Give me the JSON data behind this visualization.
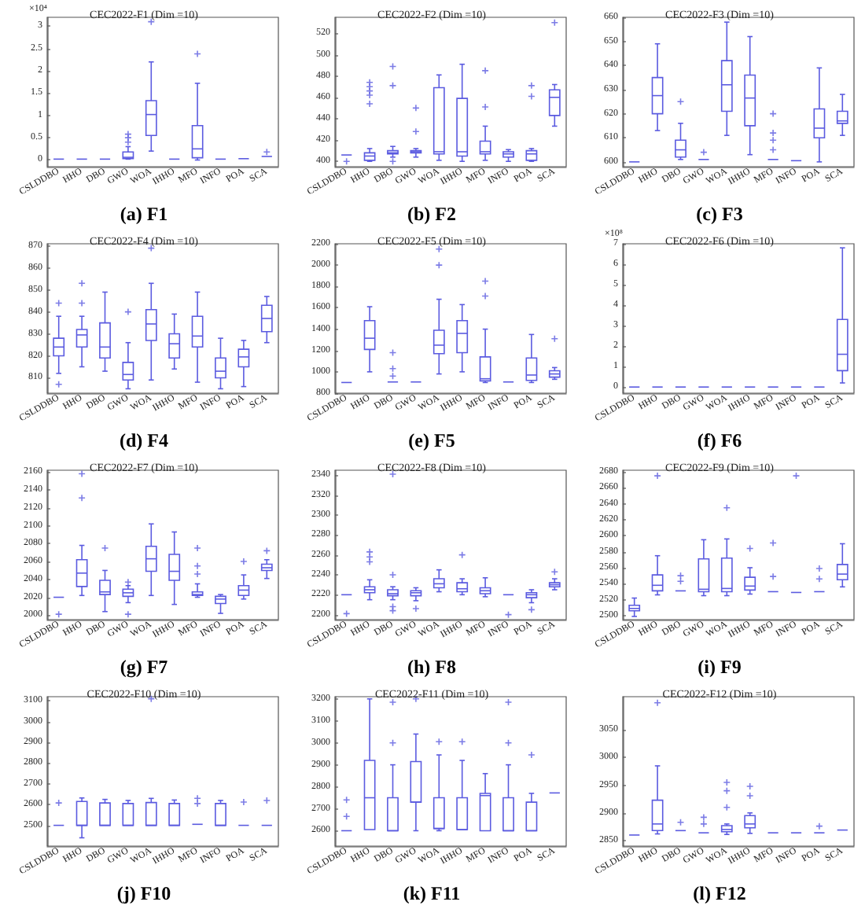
{
  "chart_data": [
    {
      "type": "box",
      "title": "CEC2022-F1 (Dim =10)",
      "ylabel": "×10⁴",
      "annotations": [
        "(a) F1"
      ],
      "color": "#5b5be0",
      "marker": "cross",
      "grid": false,
      "ylim": [
        -0.15,
        3.2
      ],
      "yticks": [
        0,
        0.5,
        1,
        1.5,
        2,
        2.5,
        3
      ],
      "categories": [
        "CSLDDBO",
        "HHO",
        "DBO",
        "GWO",
        "WOA",
        "IHHO",
        "MFO",
        "INFO",
        "POA",
        "SCA"
      ],
      "boxes": [
        {
          "low": 0.02,
          "q1": 0.02,
          "median": 0.02,
          "q3": 0.02,
          "high": 0.02
        },
        {
          "low": 0.02,
          "q1": 0.02,
          "median": 0.02,
          "q3": 0.02,
          "high": 0.02
        },
        {
          "low": 0.02,
          "q1": 0.02,
          "median": 0.02,
          "q3": 0.02,
          "high": 0.02
        },
        {
          "low": 0.02,
          "q1": 0.03,
          "median": 0.06,
          "q3": 0.18,
          "high": 0.3,
          "outliers": [
            0.4,
            0.5,
            0.58
          ]
        },
        {
          "low": 0.2,
          "q1": 0.55,
          "median": 1.02,
          "q3": 1.33,
          "high": 2.2,
          "outliers": [
            3.1
          ]
        },
        {
          "low": 0.02,
          "q1": 0.02,
          "median": 0.02,
          "q3": 0.02,
          "high": 0.02
        },
        {
          "low": 0,
          "q1": 0.05,
          "median": 0.25,
          "q3": 0.77,
          "high": 1.72,
          "outliers": [
            2.38
          ]
        },
        {
          "low": 0.02,
          "q1": 0.02,
          "median": 0.02,
          "q3": 0.02,
          "high": 0.02
        },
        {
          "low": 0.03,
          "q1": 0.03,
          "median": 0.03,
          "q3": 0.03,
          "high": 0.03
        },
        {
          "low": 0.08,
          "q1": 0.08,
          "median": 0.08,
          "q3": 0.08,
          "high": 0.08,
          "outliers": [
            0.18
          ]
        }
      ]
    },
    {
      "type": "box",
      "title": "CEC2022-F2 (Dim =10)",
      "annotations": [
        "(b) F2"
      ],
      "color": "#5b5be0",
      "marker": "cross",
      "grid": false,
      "ylim": [
        395,
        535
      ],
      "yticks": [
        400,
        420,
        440,
        460,
        480,
        500,
        520
      ],
      "categories": [
        "CSLDDBO",
        "HHO",
        "DBO",
        "GWO",
        "WOA",
        "IHHO",
        "MFO",
        "INFO",
        "POA",
        "SCA"
      ],
      "boxes": [
        {
          "low": 406,
          "q1": 406,
          "median": 406,
          "q3": 406,
          "high": 406,
          "outliers": [
            400
          ]
        },
        {
          "low": 400,
          "q1": 401,
          "median": 405,
          "q3": 408,
          "high": 412,
          "outliers": [
            454,
            462,
            466,
            470,
            474
          ]
        },
        {
          "low": 404,
          "q1": 407,
          "median": 408,
          "q3": 410,
          "high": 414,
          "outliers": [
            400,
            471,
            489
          ]
        },
        {
          "low": 404,
          "q1": 408,
          "median": 409,
          "q3": 410,
          "high": 412,
          "outliers": [
            428,
            450
          ]
        },
        {
          "low": 401,
          "q1": 407,
          "median": 409,
          "q3": 469,
          "high": 481
        },
        {
          "low": 400,
          "q1": 405,
          "median": 409,
          "q3": 459,
          "high": 491
        },
        {
          "low": 401,
          "q1": 407,
          "median": 409,
          "q3": 419,
          "high": 433,
          "outliers": [
            451,
            485
          ]
        },
        {
          "low": 400,
          "q1": 404,
          "median": 407,
          "q3": 409,
          "high": 411
        },
        {
          "low": 400,
          "q1": 401,
          "median": 407,
          "q3": 410,
          "high": 412,
          "outliers": [
            461,
            471
          ]
        },
        {
          "low": 433,
          "q1": 443,
          "median": 460,
          "q3": 467,
          "high": 472,
          "outliers": [
            530
          ]
        }
      ]
    },
    {
      "type": "box",
      "title": "CEC2022-F3 (Dim =10)",
      "annotations": [
        "(c) F3"
      ],
      "color": "#5b5be0",
      "marker": "cross",
      "grid": false,
      "ylim": [
        598,
        660
      ],
      "yticks": [
        600,
        610,
        620,
        630,
        640,
        650,
        660
      ],
      "categories": [
        "CSLDDBO",
        "HHO",
        "DBO",
        "GWO",
        "WOA",
        "IHHO",
        "MFO",
        "INFO",
        "POA",
        "SCA"
      ],
      "boxes": [
        {
          "low": 600,
          "q1": 600,
          "median": 600,
          "q3": 600,
          "high": 600
        },
        {
          "low": 613,
          "q1": 620,
          "median": 627.5,
          "q3": 635,
          "high": 649
        },
        {
          "low": 601,
          "q1": 602,
          "median": 605,
          "q3": 609,
          "high": 616,
          "outliers": [
            625
          ]
        },
        {
          "low": 601,
          "q1": 601,
          "median": 601,
          "q3": 601,
          "high": 601,
          "outliers": [
            604
          ]
        },
        {
          "low": 611,
          "q1": 621,
          "median": 632,
          "q3": 642,
          "high": 658
        },
        {
          "low": 603,
          "q1": 615,
          "median": 626.5,
          "q3": 636,
          "high": 652
        },
        {
          "low": 601,
          "q1": 601,
          "median": 601,
          "q3": 601,
          "high": 601,
          "outliers": [
            605,
            609,
            612,
            620
          ]
        },
        {
          "low": 600.5,
          "q1": 600.5,
          "median": 600.5,
          "q3": 600.5,
          "high": 600.5
        },
        {
          "low": 600,
          "q1": 610,
          "median": 614,
          "q3": 622,
          "high": 639
        },
        {
          "low": 611,
          "q1": 616,
          "median": 617,
          "q3": 621,
          "high": 628
        }
      ]
    },
    {
      "type": "box",
      "title": "CEC2022-F4 (Dim =10)",
      "annotations": [
        "(d) F4"
      ],
      "color": "#5b5be0",
      "marker": "cross",
      "grid": false,
      "ylim": [
        803,
        871
      ],
      "yticks": [
        810,
        820,
        830,
        840,
        850,
        860,
        870
      ],
      "categories": [
        "CSLDDBO",
        "HHO",
        "DBO",
        "GWO",
        "WOA",
        "IHHO",
        "MFO",
        "INFO",
        "POA",
        "SCA"
      ],
      "boxes": [
        {
          "low": 812,
          "q1": 820,
          "median": 824,
          "q3": 828,
          "high": 838,
          "outliers": [
            807,
            844
          ]
        },
        {
          "low": 815,
          "q1": 824,
          "median": 829.5,
          "q3": 832,
          "high": 838,
          "outliers": [
            844,
            853
          ]
        },
        {
          "low": 813,
          "q1": 819,
          "median": 824,
          "q3": 835,
          "high": 849
        },
        {
          "low": 805,
          "q1": 809,
          "median": 811.5,
          "q3": 817,
          "high": 826,
          "outliers": [
            840
          ]
        },
        {
          "low": 809,
          "q1": 827,
          "median": 834.5,
          "q3": 841,
          "high": 853,
          "outliers": [
            869
          ]
        },
        {
          "low": 814,
          "q1": 819,
          "median": 825.5,
          "q3": 830,
          "high": 839
        },
        {
          "low": 808,
          "q1": 824,
          "median": 829,
          "q3": 838,
          "high": 849
        },
        {
          "low": 805,
          "q1": 810,
          "median": 813,
          "q3": 819,
          "high": 828
        },
        {
          "low": 806,
          "q1": 815,
          "median": 819.5,
          "q3": 823,
          "high": 827
        },
        {
          "low": 826,
          "q1": 831,
          "median": 837,
          "q3": 843,
          "high": 847
        }
      ]
    },
    {
      "type": "box",
      "title": "CEC2022-F5 (Dim =10)",
      "annotations": [
        "(e) F5"
      ],
      "color": "#5b5be0",
      "marker": "cross",
      "grid": false,
      "ylim": [
        800,
        2200
      ],
      "yticks": [
        800,
        1000,
        1200,
        1400,
        1600,
        1800,
        2000,
        2200
      ],
      "categories": [
        "CSLDDBO",
        "HHO",
        "DBO",
        "GWO",
        "WOA",
        "IHHO",
        "MFO",
        "INFO",
        "POA",
        "SCA"
      ],
      "boxes": [
        {
          "low": 900,
          "q1": 900,
          "median": 900,
          "q3": 900,
          "high": 900
        },
        {
          "low": 1000,
          "q1": 1210,
          "median": 1315,
          "q3": 1480,
          "high": 1610
        },
        {
          "low": 905,
          "q1": 905,
          "median": 905,
          "q3": 905,
          "high": 905,
          "outliers": [
            960,
            1030,
            1180
          ]
        },
        {
          "low": 905,
          "q1": 905,
          "median": 905,
          "q3": 905,
          "high": 905
        },
        {
          "low": 980,
          "q1": 1170,
          "median": 1250,
          "q3": 1390,
          "high": 1680,
          "outliers": [
            2000,
            2150
          ]
        },
        {
          "low": 1000,
          "q1": 1180,
          "median": 1360,
          "q3": 1480,
          "high": 1630
        },
        {
          "low": 900,
          "q1": 915,
          "median": 935,
          "q3": 1140,
          "high": 1400,
          "outliers": [
            1710,
            1850
          ]
        },
        {
          "low": 905,
          "q1": 905,
          "median": 905,
          "q3": 905,
          "high": 905
        },
        {
          "low": 900,
          "q1": 920,
          "median": 970,
          "q3": 1130,
          "high": 1350
        },
        {
          "low": 930,
          "q1": 950,
          "median": 980,
          "q3": 1010,
          "high": 1040,
          "outliers": [
            1310
          ]
        }
      ]
    },
    {
      "type": "box",
      "title": "CEC2022-F6 (Dim =10)",
      "ylabel": "×10⁸",
      "annotations": [
        "(f) F6"
      ],
      "color": "#5b5be0",
      "marker": "cross",
      "grid": false,
      "ylim": [
        -0.3,
        7
      ],
      "yticks": [
        0,
        1,
        2,
        3,
        4,
        5,
        6,
        7
      ],
      "categories": [
        "CSLDDBO",
        "HHO",
        "DBO",
        "GWO",
        "WOA",
        "IHHO",
        "MFO",
        "INFO",
        "POA",
        "SCA"
      ],
      "boxes": [
        {
          "low": 0,
          "q1": 0,
          "median": 0,
          "q3": 0,
          "high": 0
        },
        {
          "low": 0,
          "q1": 0,
          "median": 0,
          "q3": 0,
          "high": 0
        },
        {
          "low": 0,
          "q1": 0,
          "median": 0,
          "q3": 0,
          "high": 0
        },
        {
          "low": 0,
          "q1": 0,
          "median": 0,
          "q3": 0,
          "high": 0
        },
        {
          "low": 0,
          "q1": 0,
          "median": 0,
          "q3": 0,
          "high": 0
        },
        {
          "low": 0,
          "q1": 0,
          "median": 0,
          "q3": 0,
          "high": 0
        },
        {
          "low": 0,
          "q1": 0,
          "median": 0,
          "q3": 0,
          "high": 0
        },
        {
          "low": 0,
          "q1": 0,
          "median": 0,
          "q3": 0,
          "high": 0
        },
        {
          "low": 0,
          "q1": 0,
          "median": 0,
          "q3": 0,
          "high": 0
        },
        {
          "low": 0.2,
          "q1": 0.8,
          "median": 1.6,
          "q3": 3.3,
          "high": 6.8
        }
      ]
    },
    {
      "type": "box",
      "title": "CEC2022-F7 (Dim =10)",
      "annotations": [
        "(g) F7"
      ],
      "color": "#5b5be0",
      "marker": "cross",
      "grid": false,
      "ylim": [
        1995,
        2162
      ],
      "yticks": [
        2000,
        2020,
        2040,
        2060,
        2080,
        2100,
        2120,
        2140,
        2160
      ],
      "categories": [
        "CSLDDBO",
        "HHO",
        "DBO",
        "GWO",
        "WOA",
        "IHHO",
        "MFO",
        "INFO",
        "POA",
        "SCA"
      ],
      "boxes": [
        {
          "low": 2020,
          "q1": 2020,
          "median": 2020,
          "q3": 2020,
          "high": 2020,
          "outliers": [
            2001
          ]
        },
        {
          "low": 2022,
          "q1": 2032,
          "median": 2047,
          "q3": 2062,
          "high": 2078,
          "outliers": [
            2131,
            2158
          ]
        },
        {
          "low": 2004,
          "q1": 2023,
          "median": 2026,
          "q3": 2039,
          "high": 2050,
          "outliers": [
            2075
          ]
        },
        {
          "low": 2014,
          "q1": 2021,
          "median": 2025,
          "q3": 2029,
          "high": 2033,
          "outliers": [
            2001,
            2037
          ]
        },
        {
          "low": 2022,
          "q1": 2049,
          "median": 2063,
          "q3": 2077,
          "high": 2102
        },
        {
          "low": 2012,
          "q1": 2039,
          "median": 2049,
          "q3": 2068,
          "high": 2093
        },
        {
          "low": 2020,
          "q1": 2022,
          "median": 2023,
          "q3": 2026,
          "high": 2035,
          "outliers": [
            2046,
            2055,
            2075
          ]
        },
        {
          "low": 2002,
          "q1": 2013,
          "median": 2018,
          "q3": 2021,
          "high": 2023
        },
        {
          "low": 2018,
          "q1": 2022,
          "median": 2028,
          "q3": 2033,
          "high": 2045,
          "outliers": [
            2060
          ]
        },
        {
          "low": 2041,
          "q1": 2050,
          "median": 2053,
          "q3": 2057,
          "high": 2062,
          "outliers": [
            2072
          ]
        }
      ]
    },
    {
      "type": "box",
      "title": "CEC2022-F8 (Dim =10)",
      "annotations": [
        "(h) F8"
      ],
      "color": "#5b5be0",
      "marker": "cross",
      "grid": false,
      "ylim": [
        2195,
        2345
      ],
      "yticks": [
        2200,
        2220,
        2240,
        2260,
        2280,
        2300,
        2320,
        2340
      ],
      "categories": [
        "CSLDDBO",
        "HHO",
        "DBO",
        "GWO",
        "WOA",
        "IHHO",
        "MFO",
        "INFO",
        "POA",
        "SCA"
      ],
      "boxes": [
        {
          "low": 2220,
          "q1": 2220,
          "median": 2220,
          "q3": 2220,
          "high": 2220,
          "outliers": [
            2201
          ]
        },
        {
          "low": 2215,
          "q1": 2222,
          "median": 2225,
          "q3": 2228,
          "high": 2235,
          "outliers": [
            2253,
            2258,
            2263
          ]
        },
        {
          "low": 2215,
          "q1": 2219,
          "median": 2221,
          "q3": 2225,
          "high": 2228,
          "outliers": [
            2204,
            2208,
            2240,
            2341
          ]
        },
        {
          "low": 2214,
          "q1": 2219,
          "median": 2222,
          "q3": 2224,
          "high": 2227,
          "outliers": [
            2206
          ]
        },
        {
          "low": 2223,
          "q1": 2227,
          "median": 2231,
          "q3": 2236,
          "high": 2245
        },
        {
          "low": 2220,
          "q1": 2223,
          "median": 2226,
          "q3": 2232,
          "high": 2236,
          "outliers": [
            2260
          ]
        },
        {
          "low": 2218,
          "q1": 2221,
          "median": 2224,
          "q3": 2227,
          "high": 2237
        },
        {
          "low": 2220,
          "q1": 2220,
          "median": 2220,
          "q3": 2220,
          "high": 2220,
          "outliers": [
            2200
          ]
        },
        {
          "low": 2212,
          "q1": 2217,
          "median": 2220,
          "q3": 2222,
          "high": 2225,
          "outliers": [
            2205
          ]
        },
        {
          "low": 2225,
          "q1": 2228,
          "median": 2230,
          "q3": 2232,
          "high": 2236,
          "outliers": [
            2243
          ]
        }
      ]
    },
    {
      "type": "box",
      "title": "CEC2022-F9 (Dim =10)",
      "annotations": [
        "(i) F9"
      ],
      "color": "#5b5be0",
      "marker": "cross",
      "grid": false,
      "ylim": [
        2495,
        2682
      ],
      "yticks": [
        2500,
        2520,
        2540,
        2560,
        2580,
        2600,
        2620,
        2640,
        2660,
        2680
      ],
      "categories": [
        "CSLDDBO",
        "HHO",
        "DBO",
        "GWO",
        "WOA",
        "IHHO",
        "MFO",
        "INFO",
        "POA",
        "SCA"
      ],
      "boxes": [
        {
          "low": 2499,
          "q1": 2506,
          "median": 2509,
          "q3": 2513,
          "high": 2522
        },
        {
          "low": 2526,
          "q1": 2531,
          "median": 2538,
          "q3": 2551,
          "high": 2575,
          "outliers": [
            2675
          ]
        },
        {
          "low": 2531,
          "q1": 2531,
          "median": 2531,
          "q3": 2531,
          "high": 2531,
          "outliers": [
            2543,
            2550
          ]
        },
        {
          "low": 2525,
          "q1": 2530,
          "median": 2533,
          "q3": 2571,
          "high": 2595
        },
        {
          "low": 2525,
          "q1": 2530,
          "median": 2534,
          "q3": 2572,
          "high": 2596,
          "outliers": [
            2635
          ]
        },
        {
          "low": 2527,
          "q1": 2532,
          "median": 2537,
          "q3": 2548,
          "high": 2560,
          "outliers": [
            2584
          ]
        },
        {
          "low": 2530,
          "q1": 2530,
          "median": 2530,
          "q3": 2530,
          "high": 2530,
          "outliers": [
            2549,
            2591
          ]
        },
        {
          "low": 2529,
          "q1": 2529,
          "median": 2529,
          "q3": 2529,
          "high": 2529,
          "outliers": [
            2675
          ]
        },
        {
          "low": 2530,
          "q1": 2530,
          "median": 2530,
          "q3": 2530,
          "high": 2530,
          "outliers": [
            2546,
            2559
          ]
        },
        {
          "low": 2536,
          "q1": 2545,
          "median": 2552,
          "q3": 2564,
          "high": 2590
        }
      ]
    },
    {
      "type": "box",
      "title": "CEC2022-F10 (Dim =10)",
      "annotations": [
        "(j) F10"
      ],
      "color": "#5b5be0",
      "marker": "cross",
      "grid": false,
      "ylim": [
        2400,
        3120
      ],
      "yticks": [
        2500,
        2600,
        2700,
        2800,
        2900,
        3000,
        3100
      ],
      "categories": [
        "CSLDDBO",
        "HHO",
        "DBO",
        "GWO",
        "WOA",
        "IHHO",
        "MFO",
        "INFO",
        "POA",
        "SCA"
      ],
      "boxes": [
        {
          "low": 2500,
          "q1": 2500,
          "median": 2500,
          "q3": 2500,
          "high": 2500,
          "outliers": [
            2608
          ]
        },
        {
          "low": 2440,
          "q1": 2500,
          "median": 2500,
          "q3": 2615,
          "high": 2632
        },
        {
          "low": 2500,
          "q1": 2500,
          "median": 2500,
          "q3": 2608,
          "high": 2625
        },
        {
          "low": 2500,
          "q1": 2500,
          "median": 2500,
          "q3": 2605,
          "high": 2620
        },
        {
          "low": 2500,
          "q1": 2500,
          "median": 2500,
          "q3": 2610,
          "high": 2630,
          "outliers": [
            3110
          ]
        },
        {
          "low": 2500,
          "q1": 2500,
          "median": 2500,
          "q3": 2605,
          "high": 2622
        },
        {
          "low": 2505,
          "q1": 2505,
          "median": 2505,
          "q3": 2505,
          "high": 2505,
          "outliers": [
            2605,
            2630
          ]
        },
        {
          "low": 2500,
          "q1": 2500,
          "median": 2500,
          "q3": 2605,
          "high": 2620
        },
        {
          "low": 2500,
          "q1": 2500,
          "median": 2500,
          "q3": 2500,
          "high": 2500,
          "outliers": [
            2612
          ]
        },
        {
          "low": 2500,
          "q1": 2500,
          "median": 2500,
          "q3": 2500,
          "high": 2500,
          "outliers": [
            2620
          ]
        }
      ]
    },
    {
      "type": "box",
      "title": "CEC2022-F11 (Dim =10)",
      "annotations": [
        "(k) F11"
      ],
      "color": "#5b5be0",
      "marker": "cross",
      "grid": false,
      "ylim": [
        2530,
        3210
      ],
      "yticks": [
        2600,
        2700,
        2800,
        2900,
        3000,
        3100,
        3200
      ],
      "categories": [
        "CSLDDBO",
        "HHO",
        "DBO",
        "GWO",
        "WOA",
        "IHHO",
        "MFO",
        "INFO",
        "POA",
        "SCA"
      ],
      "boxes": [
        {
          "low": 2600,
          "q1": 2600,
          "median": 2600,
          "q3": 2600,
          "high": 2600,
          "outliers": [
            2665,
            2740
          ]
        },
        {
          "low": 2605,
          "q1": 2605,
          "median": 2750,
          "q3": 2920,
          "high": 3200
        },
        {
          "low": 2600,
          "q1": 2600,
          "median": 2600,
          "q3": 2750,
          "high": 2900,
          "outliers": [
            3000,
            3185
          ]
        },
        {
          "low": 2600,
          "q1": 2730,
          "median": 2730,
          "q3": 2915,
          "high": 3040,
          "outliers": [
            3200
          ]
        },
        {
          "low": 2600,
          "q1": 2610,
          "median": 2610,
          "q3": 2750,
          "high": 2945,
          "outliers": [
            3005
          ]
        },
        {
          "low": 2605,
          "q1": 2605,
          "median": 2605,
          "q3": 2750,
          "high": 2920,
          "outliers": [
            3005
          ]
        },
        {
          "low": 2600,
          "q1": 2600,
          "median": 2760,
          "q3": 2770,
          "high": 2860
        },
        {
          "low": 2600,
          "q1": 2600,
          "median": 2600,
          "q3": 2750,
          "high": 2900,
          "outliers": [
            3000,
            3185
          ]
        },
        {
          "low": 2600,
          "q1": 2600,
          "median": 2600,
          "q3": 2730,
          "high": 2770,
          "outliers": [
            2945
          ]
        },
        {
          "low": 2772,
          "q1": 2772,
          "median": 2772,
          "q3": 2772,
          "high": 2772
        }
      ]
    },
    {
      "type": "box",
      "title": "CEC2022-F12 (Dim =10)",
      "annotations": [
        "(l) F12"
      ],
      "color": "#5b5be0",
      "marker": "cross",
      "grid": false,
      "ylim": [
        2840,
        3110
      ],
      "yticks": [
        2850,
        2900,
        2950,
        3000,
        3050
      ],
      "categories": [
        "CSLDDBO",
        "HHO",
        "DBO",
        "GWO",
        "WOA",
        "IHHO",
        "MFO",
        "INFO",
        "POA",
        "SCA"
      ],
      "boxes": [
        {
          "low": 2860,
          "q1": 2860,
          "median": 2860,
          "q3": 2860,
          "high": 2860
        },
        {
          "low": 2862,
          "q1": 2868,
          "median": 2880,
          "q3": 2923,
          "high": 2985,
          "outliers": [
            3099
          ]
        },
        {
          "low": 2868,
          "q1": 2868,
          "median": 2868,
          "q3": 2868,
          "high": 2868,
          "outliers": [
            2883
          ]
        },
        {
          "low": 2864,
          "q1": 2864,
          "median": 2864,
          "q3": 2864,
          "high": 2864,
          "outliers": [
            2880,
            2892
          ]
        },
        {
          "low": 2861,
          "q1": 2866,
          "median": 2870,
          "q3": 2877,
          "high": 2880,
          "outliers": [
            2910,
            2940,
            2955
          ]
        },
        {
          "low": 2863,
          "q1": 2873,
          "median": 2880,
          "q3": 2895,
          "high": 2900,
          "outliers": [
            2931,
            2948
          ]
        },
        {
          "low": 2864,
          "q1": 2864,
          "median": 2864,
          "q3": 2864,
          "high": 2864
        },
        {
          "low": 2864,
          "q1": 2864,
          "median": 2864,
          "q3": 2864,
          "high": 2864
        },
        {
          "low": 2864,
          "q1": 2864,
          "median": 2864,
          "q3": 2864,
          "high": 2864,
          "outliers": [
            2876
          ]
        },
        {
          "low": 2869,
          "q1": 2869,
          "median": 2869,
          "q3": 2869,
          "high": 2869
        }
      ]
    }
  ]
}
